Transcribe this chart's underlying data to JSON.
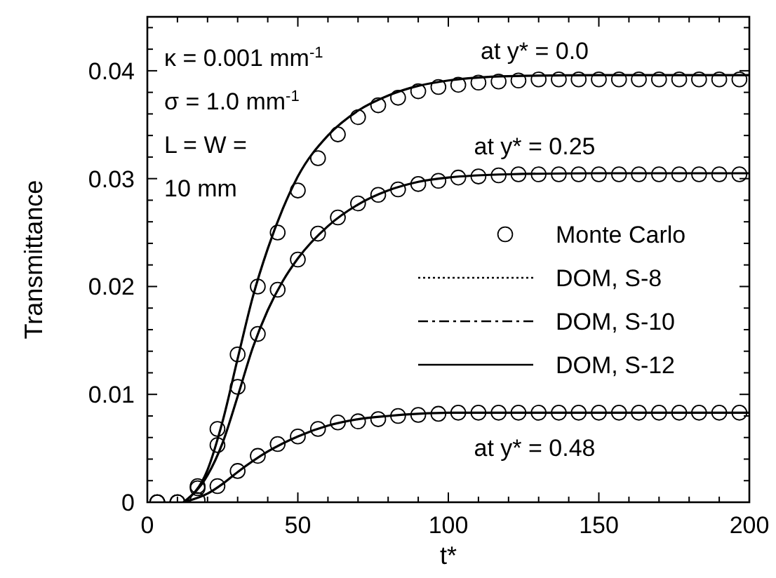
{
  "chart_data": {
    "type": "line",
    "xlabel": "t*",
    "ylabel": "Transmittance",
    "xlim": [
      0,
      200
    ],
    "ylim": [
      0,
      0.045
    ],
    "xticks": [
      0,
      {
        "value": 10,
        "label": null
      },
      {
        "value": 20,
        "label": null
      },
      {
        "value": 30,
        "label": null
      },
      {
        "value": 40,
        "label": null
      },
      50,
      {
        "value": 60,
        "label": null
      },
      {
        "value": 70,
        "label": null
      },
      {
        "value": 80,
        "label": null
      },
      {
        "value": 90,
        "label": null
      },
      100,
      {
        "value": 110,
        "label": null
      },
      {
        "value": 120,
        "label": null
      },
      {
        "value": 130,
        "label": null
      },
      {
        "value": 140,
        "label": null
      },
      150,
      {
        "value": 160,
        "label": null
      },
      {
        "value": 170,
        "label": null
      },
      {
        "value": 180,
        "label": null
      },
      {
        "value": 190,
        "label": null
      },
      200
    ],
    "yticks": [
      0,
      {
        "value": 0.002,
        "label": null
      },
      {
        "value": 0.004,
        "label": null
      },
      {
        "value": 0.006,
        "label": null
      },
      {
        "value": 0.008,
        "label": null
      },
      0.01,
      {
        "value": 0.012,
        "label": null
      },
      {
        "value": 0.014,
        "label": null
      },
      {
        "value": 0.016,
        "label": null
      },
      {
        "value": 0.018,
        "label": null
      },
      0.02,
      {
        "value": 0.022,
        "label": null
      },
      {
        "value": 0.024,
        "label": null
      },
      {
        "value": 0.026,
        "label": null
      },
      {
        "value": 0.028,
        "label": null
      },
      0.03,
      {
        "value": 0.032,
        "label": null
      },
      {
        "value": 0.034,
        "label": null
      },
      {
        "value": 0.036,
        "label": null
      },
      {
        "value": 0.038,
        "label": null
      },
      0.04,
      {
        "value": 0.042,
        "label": null
      },
      {
        "value": 0.044,
        "label": null
      }
    ],
    "grid": false,
    "legend": "right",
    "annotations": [
      "κ = 0.001 mm$^{-1}$",
      "σ = 1.0 mm$^{-1}$",
      "L = W =",
      "10 mm",
      "at y* = 0.0",
      "at y* = 0.25",
      "at y* = 0.48"
    ],
    "series": [
      {
        "name": "Monte Carlo",
        "type": "scatter",
        "marker": "circle",
        "color": "#000000",
        "x": [
          3.3,
          10,
          16.7,
          23.3,
          30,
          36.7,
          43.3,
          50,
          56.7,
          63.3,
          70,
          76.7,
          83.3,
          90,
          96.7,
          103.3,
          110,
          116.7,
          123.3,
          130,
          136.7,
          143.3,
          150,
          156.7,
          163.3,
          170,
          176.7,
          183.3,
          190,
          196.7,
          3.3,
          10,
          16.7,
          23.3,
          30,
          36.7,
          43.3,
          50,
          56.7,
          63.3,
          70,
          76.7,
          83.3,
          90,
          96.7,
          103.3,
          110,
          116.7,
          123.3,
          130,
          136.7,
          143.3,
          150,
          156.7,
          163.3,
          170,
          176.7,
          183.3,
          190,
          196.7,
          3.3,
          10,
          16.7,
          23.3,
          30,
          36.7,
          43.3,
          50,
          56.7,
          63.3,
          70,
          76.7,
          83.3,
          90,
          96.7,
          103.3,
          110,
          116.7,
          123.3,
          130,
          136.7,
          143.3,
          150,
          156.7,
          163.3,
          170,
          176.7,
          183.3,
          190,
          196.7
        ],
        "values": [
          0,
          0,
          0.0015,
          0.0068,
          0.0137,
          0.02,
          0.025,
          0.0289,
          0.0319,
          0.0341,
          0.0357,
          0.0368,
          0.0375,
          0.0381,
          0.0385,
          0.0387,
          0.0389,
          0.039,
          0.0391,
          0.0392,
          0.0392,
          0.0392,
          0.0392,
          0.0392,
          0.0392,
          0.0392,
          0.0392,
          0.0392,
          0.0392,
          0.0392,
          0,
          0,
          0.0013,
          0.0053,
          0.0107,
          0.0156,
          0.0197,
          0.0225,
          0.0249,
          0.0264,
          0.0277,
          0.0285,
          0.029,
          0.0295,
          0.0298,
          0.0301,
          0.0302,
          0.0303,
          0.0304,
          0.0304,
          0.0304,
          0.0304,
          0.0304,
          0.0304,
          0.0304,
          0.0304,
          0.0304,
          0.0304,
          0.0304,
          0.0304,
          0,
          0,
          0.0002,
          0.0015,
          0.0029,
          0.0043,
          0.0054,
          0.0061,
          0.0068,
          0.0074,
          0.0075,
          0.0077,
          0.008,
          0.0081,
          0.0082,
          0.0083,
          0.0083,
          0.0083,
          0.0083,
          0.0083,
          0.0083,
          0.0083,
          0.0083,
          0.0083,
          0.0083,
          0.0083,
          0.0083,
          0.0083,
          0.0083,
          0.0083
        ]
      },
      {
        "name": "DOM, S-8",
        "line_style": "dotted",
        "color": "#000000",
        "values": [
          null
        ]
      },
      {
        "name": "DOM, S-10",
        "line_style": "dashed",
        "color": "#000000",
        "values": [
          null
        ]
      },
      {
        "name": "DOM, S-12",
        "line_style": "solid",
        "color": "#000000",
        "x": [
          12,
          20,
          25,
          30,
          35,
          40,
          45,
          50,
          60,
          70,
          80,
          90,
          100,
          120,
          150,
          200,
          null,
          12,
          20,
          25,
          30,
          35,
          40,
          45,
          50,
          60,
          70,
          80,
          90,
          100,
          120,
          150,
          200,
          null,
          12,
          20,
          25,
          30,
          40,
          50,
          60,
          70,
          80,
          90,
          100,
          200
        ],
        "values": [
          0,
          0.003,
          0.0075,
          0.0133,
          0.019,
          0.0235,
          0.0272,
          0.0302,
          0.034,
          0.0363,
          0.0377,
          0.0386,
          0.0391,
          0.0395,
          0.0396,
          0.0396,
          null,
          0,
          0.0025,
          0.0055,
          0.0098,
          0.0143,
          0.0178,
          0.0205,
          0.0226,
          0.0256,
          0.0276,
          0.0289,
          0.0297,
          0.0301,
          0.0304,
          0.0305,
          0.0305,
          null,
          0,
          0.0008,
          0.0017,
          0.0028,
          0.0047,
          0.0061,
          0.0071,
          0.0077,
          0.008,
          0.0082,
          0.0083,
          0.0083
        ]
      }
    ]
  }
}
